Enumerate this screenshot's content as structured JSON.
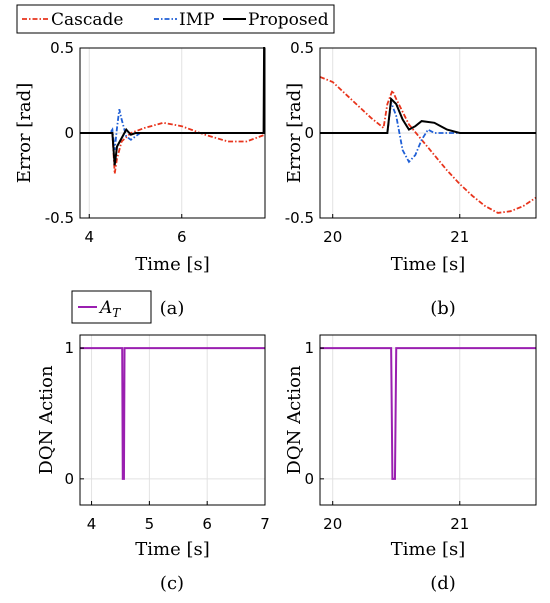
{
  "legend_top": {
    "items": [
      {
        "label": "Cascade",
        "color": "#e8341c",
        "dash": "dashdot"
      },
      {
        "label": "IMP",
        "color": "#1f5fd6",
        "dash": "dashdot"
      },
      {
        "label": "Proposed",
        "color": "#000000",
        "dash": "solid"
      }
    ]
  },
  "legend_bottom": {
    "label_main": "A",
    "label_sub": "T",
    "color": "#9a1fb0"
  },
  "chart_data": [
    {
      "type": "line",
      "caption": "(a)",
      "xlabel": "Time [s]",
      "ylabel": "Error [rad]",
      "xlim": [
        3.8,
        7.8
      ],
      "ylim": [
        -0.5,
        0.5
      ],
      "xticks": [
        4,
        6
      ],
      "xtick_labels": [
        "4",
        "6"
      ],
      "yticks": [
        -0.5,
        0,
        0.5
      ],
      "ytick_labels": [
        "-0.5",
        "0",
        "0.5"
      ],
      "grid": true,
      "series": [
        {
          "name": "Cascade",
          "color": "#e8341c",
          "dash": "dashdot",
          "x": [
            3.8,
            4.4,
            4.5,
            4.55,
            4.6,
            4.7,
            4.9,
            5.2,
            5.6,
            6.0,
            6.5,
            7.0,
            7.4,
            7.7,
            7.8
          ],
          "y": [
            0.0,
            0.0,
            0.0,
            -0.24,
            -0.15,
            -0.05,
            0.0,
            0.03,
            0.06,
            0.04,
            -0.01,
            -0.05,
            -0.05,
            -0.02,
            -0.01
          ]
        },
        {
          "name": "IMP",
          "color": "#1f5fd6",
          "dash": "dashdot",
          "x": [
            3.8,
            4.45,
            4.5,
            4.55,
            4.6,
            4.65,
            4.7,
            4.8,
            4.9,
            5.0,
            5.1,
            5.5,
            7.8
          ],
          "y": [
            0.0,
            0.0,
            0.02,
            -0.1,
            0.03,
            0.14,
            0.08,
            -0.02,
            -0.04,
            -0.02,
            0.0,
            0.0,
            0.0
          ]
        },
        {
          "name": "Proposed",
          "color": "#000000",
          "dash": "solid",
          "x": [
            3.8,
            4.5,
            4.55,
            4.6,
            4.7,
            4.8,
            4.9,
            5.0,
            5.2,
            7.77,
            7.78,
            7.8
          ],
          "y": [
            0.0,
            0.0,
            -0.19,
            -0.08,
            -0.03,
            0.02,
            -0.01,
            0.0,
            0.0,
            0.0,
            0.5,
            0.5
          ]
        }
      ]
    },
    {
      "type": "line",
      "caption": "(b)",
      "xlabel": "Time [s]",
      "ylabel": "Error [rad]",
      "xlim": [
        19.9,
        21.6
      ],
      "ylim": [
        -0.5,
        0.5
      ],
      "xticks": [
        20,
        21
      ],
      "xtick_labels": [
        "20",
        "21"
      ],
      "yticks": [
        -0.5,
        0,
        0.5
      ],
      "ytick_labels": [
        "-0.5",
        "0",
        "0.5"
      ],
      "grid": true,
      "series": [
        {
          "name": "Cascade",
          "color": "#e8341c",
          "dash": "dashdot",
          "x": [
            19.9,
            20.0,
            20.1,
            20.2,
            20.3,
            20.4,
            20.43,
            20.47,
            20.5,
            20.6,
            20.7,
            20.8,
            20.9,
            21.0,
            21.1,
            21.2,
            21.3,
            21.4,
            21.5,
            21.6
          ],
          "y": [
            0.33,
            0.3,
            0.23,
            0.16,
            0.09,
            0.03,
            0.17,
            0.25,
            0.2,
            0.05,
            -0.04,
            -0.13,
            -0.22,
            -0.3,
            -0.37,
            -0.43,
            -0.47,
            -0.46,
            -0.43,
            -0.38
          ]
        },
        {
          "name": "IMP",
          "color": "#1f5fd6",
          "dash": "dashdot",
          "x": [
            19.9,
            20.43,
            20.46,
            20.5,
            20.55,
            20.6,
            20.65,
            20.7,
            20.75,
            20.8,
            21.0,
            21.6
          ],
          "y": [
            0.0,
            0.0,
            0.18,
            0.1,
            -0.1,
            -0.17,
            -0.13,
            -0.04,
            0.02,
            0.0,
            0.0,
            0.0
          ]
        },
        {
          "name": "Proposed",
          "color": "#000000",
          "dash": "solid",
          "x": [
            19.9,
            20.43,
            20.46,
            20.5,
            20.55,
            20.6,
            20.65,
            20.7,
            20.8,
            20.9,
            21.0,
            21.6
          ],
          "y": [
            0.0,
            0.0,
            0.2,
            0.17,
            0.08,
            0.02,
            0.04,
            0.07,
            0.06,
            0.02,
            0.0,
            0.0
          ]
        }
      ]
    },
    {
      "type": "line",
      "caption": "(c)",
      "xlabel": "Time [s]",
      "ylabel": "DQN Action",
      "xlim": [
        3.8,
        7.0
      ],
      "ylim": [
        -0.2,
        1.1
      ],
      "xticks": [
        4,
        5,
        6,
        7
      ],
      "xtick_labels": [
        "4",
        "5",
        "6",
        "7"
      ],
      "yticks": [
        0,
        1
      ],
      "ytick_labels": [
        "0",
        "1"
      ],
      "grid": true,
      "series": [
        {
          "name": "A_T",
          "color": "#9a1fb0",
          "dash": "solid",
          "x": [
            3.8,
            4.53,
            4.54,
            4.56,
            4.57,
            7.0
          ],
          "y": [
            1,
            1,
            0,
            0,
            1,
            1
          ]
        }
      ]
    },
    {
      "type": "line",
      "caption": "(d)",
      "xlabel": "Time [s]",
      "ylabel": "DQN Action",
      "xlim": [
        19.9,
        21.6
      ],
      "ylim": [
        -0.2,
        1.1
      ],
      "xticks": [
        20,
        21
      ],
      "xtick_labels": [
        "20",
        "21"
      ],
      "yticks": [
        0,
        1
      ],
      "ytick_labels": [
        "0",
        "1"
      ],
      "grid": true,
      "series": [
        {
          "name": "A_T",
          "color": "#9a1fb0",
          "dash": "solid",
          "x": [
            19.9,
            20.46,
            20.47,
            20.49,
            20.5,
            21.6
          ],
          "y": [
            1,
            1,
            0,
            0,
            1,
            1
          ]
        }
      ]
    }
  ]
}
